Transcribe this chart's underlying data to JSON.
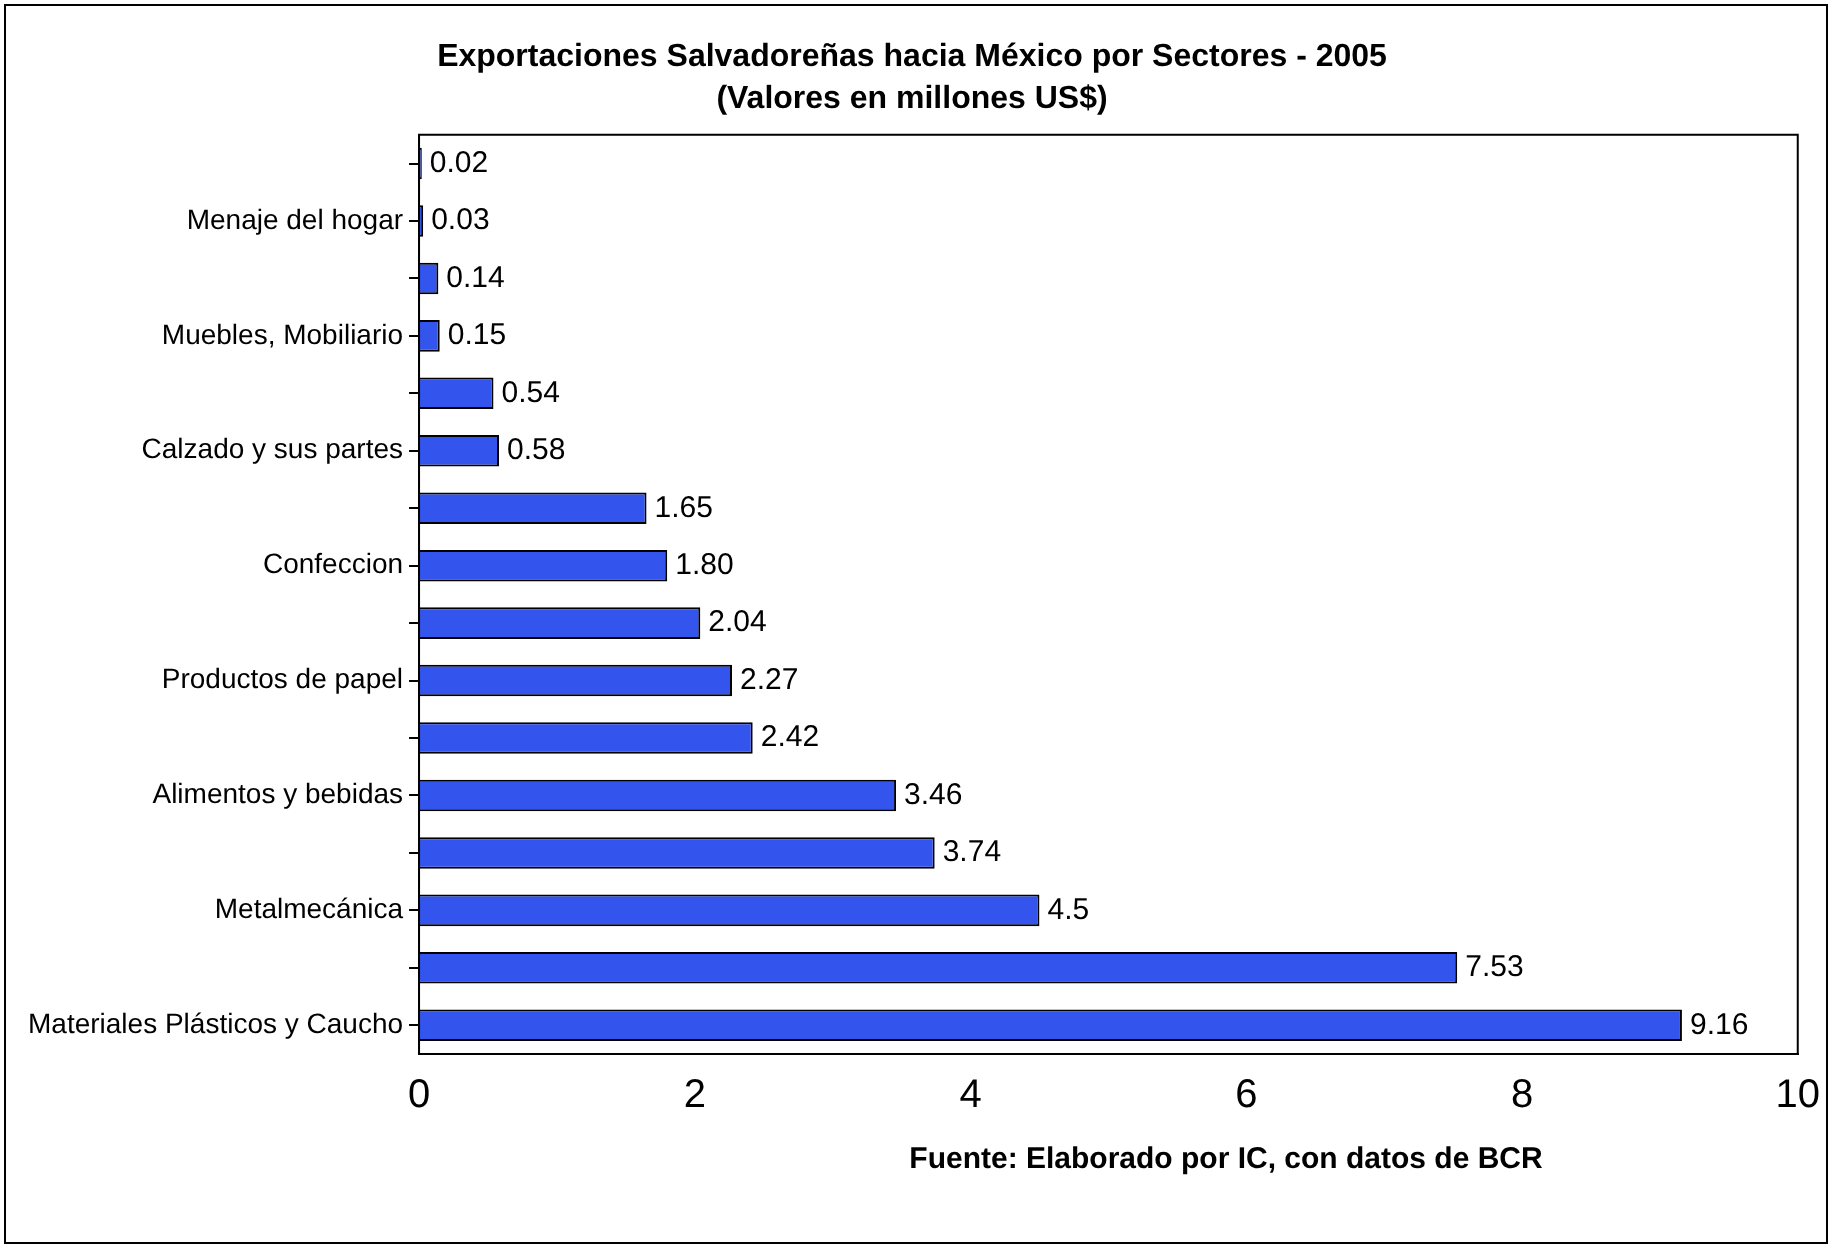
{
  "chart_data": {
    "type": "bar",
    "orientation": "horizontal",
    "title": "Exportaciones Salvadoreñas hacia México por Sectores - 2005",
    "subtitle": "(Valores en millones US$)",
    "categories": [
      null,
      "Menaje del hogar",
      null,
      "Muebles, Mobiliario",
      null,
      "Calzado y sus partes",
      null,
      "Confeccion",
      null,
      "Productos de papel",
      null,
      "Alimentos y bebidas",
      null,
      "Metalmecánica",
      null,
      "Materiales Plásticos y Caucho"
    ],
    "values": [
      0.02,
      0.03,
      0.14,
      0.15,
      0.54,
      0.58,
      1.65,
      1.8,
      2.04,
      2.27,
      2.42,
      3.46,
      3.74,
      4.5,
      7.53,
      9.16
    ],
    "value_labels": [
      "0.02",
      "0.03",
      "0.14",
      "0.15",
      "0.54",
      "0.58",
      "1.65",
      "1.80",
      "2.04",
      "2.27",
      "2.42",
      "3.46",
      "3.74",
      "4.5",
      "7.53",
      "9.16"
    ],
    "color": "#3355ee",
    "xlim": [
      0,
      10
    ],
    "xticks": [
      0,
      2,
      4,
      6,
      8,
      10
    ],
    "grid": false,
    "legend": false,
    "annotations": [
      "Fuente: Elaborado por IC, con datos de BCR"
    ]
  }
}
